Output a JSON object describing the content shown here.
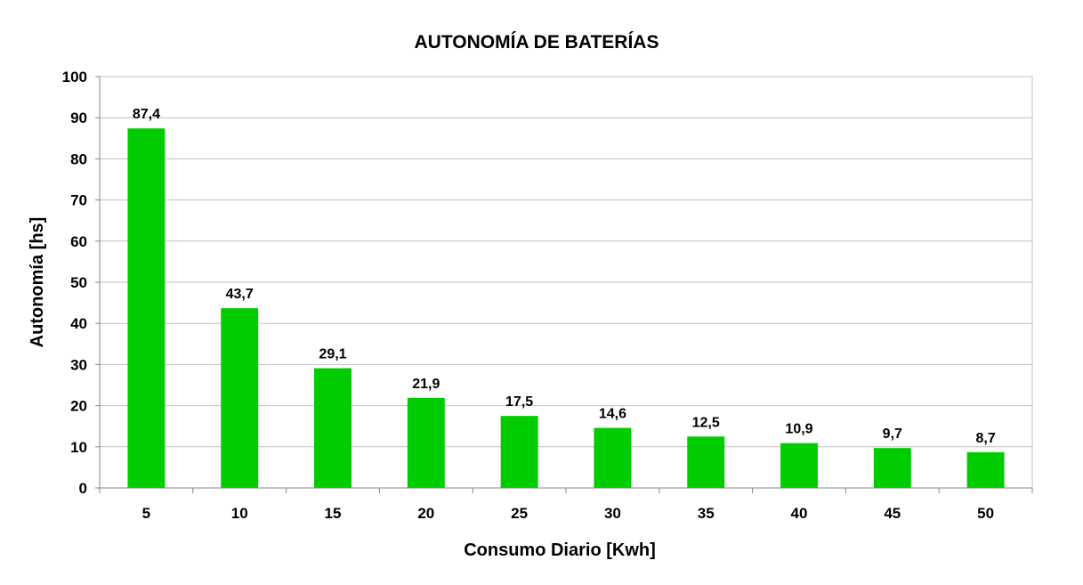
{
  "chart_data": {
    "type": "bar",
    "title": "AUTONOMÍA DE BATERÍAS",
    "xlabel": "Consumo Diario [Kwh]",
    "ylabel": "Autonomía [hs]",
    "categories": [
      "5",
      "10",
      "15",
      "20",
      "25",
      "30",
      "35",
      "40",
      "45",
      "50"
    ],
    "values": [
      87.4,
      43.7,
      29.1,
      21.9,
      17.5,
      14.6,
      12.5,
      10.9,
      9.7,
      8.7
    ],
    "value_labels": [
      "87,4",
      "43,7",
      "29,1",
      "21,9",
      "17,5",
      "14,6",
      "12,5",
      "10,9",
      "9,7",
      "8,7"
    ],
    "ylim": [
      0,
      100
    ],
    "yticks": [
      "0",
      "10",
      "20",
      "30",
      "40",
      "50",
      "60",
      "70",
      "80",
      "90",
      "100"
    ],
    "grid": true,
    "legend": false,
    "bar_color": "#00cc00"
  }
}
